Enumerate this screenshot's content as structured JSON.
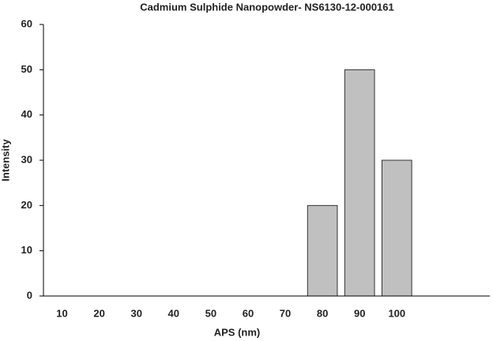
{
  "chart_data": {
    "type": "bar",
    "title": "Cadmium Sulphide Nanopowder- NS6130-12-000161",
    "x_label": "APS (nm)",
    "y_label": "Intensity",
    "categories": [
      "10",
      "20",
      "30",
      "40",
      "50",
      "60",
      "70",
      "80",
      "90",
      "100",
      null,
      null
    ],
    "values": [
      0,
      0,
      0,
      0,
      0,
      0,
      0,
      20,
      50,
      30,
      null,
      null
    ],
    "color": "#c0c0c0",
    "ylim": [
      0,
      60
    ],
    "yticks": [
      0,
      10,
      20,
      30,
      40,
      50,
      60
    ],
    "grid": false
  }
}
